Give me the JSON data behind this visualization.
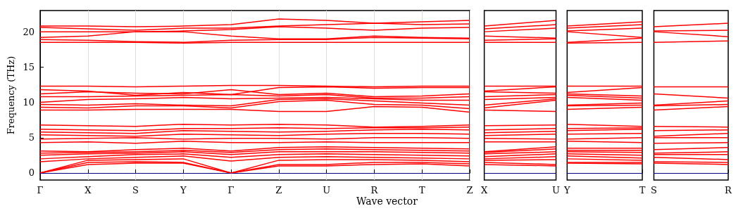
{
  "chart_data": [
    {
      "type": "line",
      "ylabel": "Frequency (THz)",
      "xlabel": "Wave vector",
      "categories": [
        "Γ",
        "X",
        "S",
        "Y",
        "Γ",
        "Z",
        "U",
        "R",
        "T",
        "Z"
      ],
      "ylim": [
        -1,
        23
      ],
      "yticks": [
        0,
        5,
        10,
        15,
        20
      ],
      "grid": "x",
      "marker": "none",
      "line_style": "solid",
      "ref_lines": [
        {
          "axis": "y",
          "value": 0,
          "color": "#0000ff",
          "line_style": "dotted"
        }
      ],
      "series": [
        {
          "color": "#ff0000",
          "values": [
            18.5,
            18.5,
            18.5,
            18.4,
            18.5,
            18.5,
            18.5,
            18.5,
            18.5,
            18.5
          ]
        },
        {
          "color": "#ff0000",
          "values": [
            18.9,
            18.8,
            18.6,
            18.5,
            18.8,
            18.9,
            18.9,
            19.2,
            19.1,
            19.0
          ]
        },
        {
          "color": "#ff0000",
          "values": [
            19.2,
            19.4,
            20.0,
            20.0,
            19.4,
            19.0,
            19.0,
            19.4,
            19.2,
            19.1
          ]
        },
        {
          "color": "#ff0000",
          "values": [
            20.0,
            20.0,
            20.0,
            20.1,
            20.3,
            20.7,
            20.5,
            20.2,
            20.5,
            20.6
          ]
        },
        {
          "color": "#ff0000",
          "values": [
            20.6,
            20.4,
            20.2,
            20.5,
            20.5,
            20.8,
            21.0,
            21.2,
            21.0,
            21.1
          ]
        },
        {
          "color": "#ff0000",
          "values": [
            20.8,
            20.8,
            20.7,
            20.8,
            21.0,
            21.8,
            21.6,
            21.2,
            21.4,
            21.6
          ]
        },
        {
          "color": "#ff0000",
          "values": [
            8.9,
            8.9,
            9.0,
            9.0,
            9.0,
            8.7,
            8.7,
            9.4,
            9.3,
            8.6
          ]
        },
        {
          "color": "#ff0000",
          "values": [
            9.3,
            9.2,
            9.5,
            9.5,
            9.2,
            10.1,
            10.3,
            9.7,
            9.6,
            9.1
          ]
        },
        {
          "color": "#ff0000",
          "values": [
            9.7,
            9.6,
            9.8,
            9.6,
            9.5,
            10.4,
            10.5,
            10.2,
            9.9,
            9.6
          ]
        },
        {
          "color": "#ff0000",
          "values": [
            10.0,
            10.4,
            10.5,
            10.7,
            10.5,
            10.6,
            10.7,
            10.5,
            10.3,
            10.3
          ]
        },
        {
          "color": "#ff0000",
          "values": [
            10.8,
            10.8,
            10.9,
            11.0,
            11.1,
            10.9,
            11.1,
            10.6,
            10.6,
            10.8
          ]
        },
        {
          "color": "#ff0000",
          "values": [
            11.2,
            11.5,
            11.3,
            11.2,
            11.8,
            11.1,
            11.3,
            10.8,
            10.9,
            11.2
          ]
        },
        {
          "color": "#ff0000",
          "values": [
            11.8,
            11.6,
            11.0,
            11.4,
            11.1,
            12.1,
            12.2,
            12.0,
            12.1,
            12.1
          ]
        },
        {
          "color": "#ff0000",
          "values": [
            12.3,
            12.3,
            12.2,
            12.3,
            12.4,
            12.4,
            12.3,
            12.2,
            12.3,
            12.3
          ]
        },
        {
          "color": "#ff0000",
          "values": [
            0,
            1.2,
            1.4,
            1.4,
            0,
            1.0,
            1.0,
            1.2,
            1.3,
            1.0
          ]
        },
        {
          "color": "#ff0000",
          "values": [
            0,
            1.5,
            1.6,
            1.5,
            0,
            1.2,
            1.2,
            1.5,
            1.5,
            1.3
          ]
        },
        {
          "color": "#ff0000",
          "values": [
            0,
            1.8,
            1.9,
            2.0,
            0,
            1.8,
            1.9,
            1.9,
            1.8,
            1.6
          ]
        },
        {
          "color": "#ff0000",
          "values": [
            1.6,
            2.0,
            2.2,
            2.4,
            1.7,
            2.2,
            2.3,
            2.2,
            2.1,
            2.0
          ]
        },
        {
          "color": "#ff0000",
          "values": [
            2.0,
            2.3,
            2.6,
            2.7,
            2.2,
            2.6,
            2.7,
            2.6,
            2.5,
            2.4
          ]
        },
        {
          "color": "#ff0000",
          "values": [
            2.5,
            2.7,
            2.8,
            3.0,
            2.6,
            3.0,
            3.0,
            3.0,
            2.9,
            2.8
          ]
        },
        {
          "color": "#ff0000",
          "values": [
            2.8,
            2.9,
            3.0,
            3.2,
            2.9,
            3.3,
            3.4,
            3.3,
            3.2,
            3.1
          ]
        },
        {
          "color": "#ff0000",
          "values": [
            3.1,
            3.0,
            3.3,
            3.5,
            3.1,
            3.6,
            3.7,
            3.6,
            3.5,
            3.4
          ]
        },
        {
          "color": "#ff0000",
          "values": [
            4.3,
            4.4,
            4.2,
            4.5,
            4.3,
            4.3,
            4.4,
            4.3,
            4.3,
            4.3
          ]
        },
        {
          "color": "#ff0000",
          "values": [
            4.8,
            4.9,
            5.0,
            4.8,
            4.9,
            4.9,
            4.8,
            5.0,
            5.0,
            4.9
          ]
        },
        {
          "color": "#ff0000",
          "values": [
            5.4,
            5.3,
            5.2,
            5.5,
            5.4,
            5.3,
            5.5,
            5.6,
            5.6,
            5.5
          ]
        },
        {
          "color": "#ff0000",
          "values": [
            5.8,
            5.7,
            5.6,
            6.0,
            5.9,
            5.8,
            5.9,
            6.1,
            6.2,
            6.1
          ]
        },
        {
          "color": "#ff0000",
          "values": [
            6.2,
            6.1,
            6.0,
            6.3,
            6.3,
            6.4,
            6.3,
            6.4,
            6.4,
            6.5
          ]
        },
        {
          "color": "#ff0000",
          "values": [
            6.8,
            6.7,
            6.6,
            6.9,
            6.8,
            6.9,
            6.8,
            6.5,
            6.6,
            6.8
          ]
        }
      ]
    },
    {
      "type": "line",
      "categories": [
        "X",
        "U"
      ],
      "ylim": [
        -1,
        23
      ],
      "yticks": [
        0,
        5,
        10,
        15,
        20
      ],
      "tick_labels": "x",
      "marker": "none",
      "line_style": "solid",
      "ref_lines": [
        {
          "axis": "y",
          "value": 0,
          "color": "#0000ff",
          "line_style": "dotted"
        }
      ],
      "series": [
        {
          "color": "#ff0000",
          "values": [
            18.5,
            18.5
          ]
        },
        {
          "color": "#ff0000",
          "values": [
            18.8,
            19.0
          ]
        },
        {
          "color": "#ff0000",
          "values": [
            19.4,
            19.1
          ]
        },
        {
          "color": "#ff0000",
          "values": [
            20.0,
            20.5
          ]
        },
        {
          "color": "#ff0000",
          "values": [
            20.4,
            21.0
          ]
        },
        {
          "color": "#ff0000",
          "values": [
            20.8,
            21.6
          ]
        },
        {
          "color": "#ff0000",
          "values": [
            8.9,
            8.7
          ]
        },
        {
          "color": "#ff0000",
          "values": [
            9.2,
            10.3
          ]
        },
        {
          "color": "#ff0000",
          "values": [
            9.6,
            10.5
          ]
        },
        {
          "color": "#ff0000",
          "values": [
            10.4,
            10.7
          ]
        },
        {
          "color": "#ff0000",
          "values": [
            10.8,
            11.1
          ]
        },
        {
          "color": "#ff0000",
          "values": [
            11.5,
            11.3
          ]
        },
        {
          "color": "#ff0000",
          "values": [
            11.6,
            12.2
          ]
        },
        {
          "color": "#ff0000",
          "values": [
            12.3,
            12.3
          ]
        },
        {
          "color": "#ff0000",
          "values": [
            1.2,
            1.0
          ]
        },
        {
          "color": "#ff0000",
          "values": [
            1.5,
            1.2
          ]
        },
        {
          "color": "#ff0000",
          "values": [
            1.8,
            1.9
          ]
        },
        {
          "color": "#ff0000",
          "values": [
            2.0,
            2.3
          ]
        },
        {
          "color": "#ff0000",
          "values": [
            2.3,
            2.7
          ]
        },
        {
          "color": "#ff0000",
          "values": [
            2.7,
            3.0
          ]
        },
        {
          "color": "#ff0000",
          "values": [
            2.9,
            3.4
          ]
        },
        {
          "color": "#ff0000",
          "values": [
            3.0,
            3.7
          ]
        },
        {
          "color": "#ff0000",
          "values": [
            4.4,
            4.4
          ]
        },
        {
          "color": "#ff0000",
          "values": [
            4.9,
            4.8
          ]
        },
        {
          "color": "#ff0000",
          "values": [
            5.3,
            5.5
          ]
        },
        {
          "color": "#ff0000",
          "values": [
            5.7,
            5.9
          ]
        },
        {
          "color": "#ff0000",
          "values": [
            6.1,
            6.3
          ]
        },
        {
          "color": "#ff0000",
          "values": [
            6.7,
            6.8
          ]
        }
      ]
    },
    {
      "type": "line",
      "categories": [
        "Y",
        "T"
      ],
      "ylim": [
        -1,
        23
      ],
      "yticks": [
        0,
        5,
        10,
        15,
        20
      ],
      "tick_labels": "x",
      "marker": "none",
      "line_style": "solid",
      "ref_lines": [
        {
          "axis": "y",
          "value": 0,
          "color": "#0000ff",
          "line_style": "dotted"
        }
      ],
      "series": [
        {
          "color": "#ff0000",
          "values": [
            18.4,
            18.5
          ]
        },
        {
          "color": "#ff0000",
          "values": [
            18.5,
            19.1
          ]
        },
        {
          "color": "#ff0000",
          "values": [
            20.0,
            19.2
          ]
        },
        {
          "color": "#ff0000",
          "values": [
            20.1,
            20.5
          ]
        },
        {
          "color": "#ff0000",
          "values": [
            20.5,
            21.0
          ]
        },
        {
          "color": "#ff0000",
          "values": [
            20.8,
            21.4
          ]
        },
        {
          "color": "#ff0000",
          "values": [
            9.0,
            9.3
          ]
        },
        {
          "color": "#ff0000",
          "values": [
            9.5,
            9.6
          ]
        },
        {
          "color": "#ff0000",
          "values": [
            9.6,
            9.9
          ]
        },
        {
          "color": "#ff0000",
          "values": [
            10.7,
            10.3
          ]
        },
        {
          "color": "#ff0000",
          "values": [
            11.0,
            10.6
          ]
        },
        {
          "color": "#ff0000",
          "values": [
            11.2,
            10.9
          ]
        },
        {
          "color": "#ff0000",
          "values": [
            11.4,
            12.1
          ]
        },
        {
          "color": "#ff0000",
          "values": [
            12.3,
            12.3
          ]
        },
        {
          "color": "#ff0000",
          "values": [
            1.4,
            1.3
          ]
        },
        {
          "color": "#ff0000",
          "values": [
            1.5,
            1.5
          ]
        },
        {
          "color": "#ff0000",
          "values": [
            2.0,
            1.8
          ]
        },
        {
          "color": "#ff0000",
          "values": [
            2.4,
            2.1
          ]
        },
        {
          "color": "#ff0000",
          "values": [
            2.7,
            2.5
          ]
        },
        {
          "color": "#ff0000",
          "values": [
            3.0,
            2.9
          ]
        },
        {
          "color": "#ff0000",
          "values": [
            3.2,
            3.2
          ]
        },
        {
          "color": "#ff0000",
          "values": [
            3.5,
            3.5
          ]
        },
        {
          "color": "#ff0000",
          "values": [
            4.5,
            4.3
          ]
        },
        {
          "color": "#ff0000",
          "values": [
            4.8,
            5.0
          ]
        },
        {
          "color": "#ff0000",
          "values": [
            5.5,
            5.6
          ]
        },
        {
          "color": "#ff0000",
          "values": [
            6.0,
            6.2
          ]
        },
        {
          "color": "#ff0000",
          "values": [
            6.3,
            6.4
          ]
        },
        {
          "color": "#ff0000",
          "values": [
            6.9,
            6.6
          ]
        }
      ]
    },
    {
      "type": "line",
      "categories": [
        "S",
        "R"
      ],
      "ylim": [
        -1,
        23
      ],
      "yticks": [
        0,
        5,
        10,
        15,
        20
      ],
      "tick_labels": "x",
      "marker": "none",
      "line_style": "solid",
      "ref_lines": [
        {
          "axis": "y",
          "value": 0,
          "color": "#0000ff",
          "line_style": "dotted"
        }
      ],
      "series": [
        {
          "color": "#ff0000",
          "values": [
            18.5,
            18.7
          ]
        },
        {
          "color": "#ff0000",
          "values": [
            20.0,
            19.3
          ]
        },
        {
          "color": "#ff0000",
          "values": [
            20.1,
            20.2
          ]
        },
        {
          "color": "#ff0000",
          "values": [
            20.7,
            21.2
          ]
        },
        {
          "color": "#ff0000",
          "values": [
            8.9,
            9.4
          ]
        },
        {
          "color": "#ff0000",
          "values": [
            9.5,
            9.7
          ]
        },
        {
          "color": "#ff0000",
          "values": [
            9.6,
            10.2
          ]
        },
        {
          "color": "#ff0000",
          "values": [
            11.2,
            10.6
          ]
        },
        {
          "color": "#ff0000",
          "values": [
            12.2,
            12.2
          ]
        },
        {
          "color": "#ff0000",
          "values": [
            1.4,
            1.2
          ]
        },
        {
          "color": "#ff0000",
          "values": [
            1.6,
            1.5
          ]
        },
        {
          "color": "#ff0000",
          "values": [
            2.2,
            1.9
          ]
        },
        {
          "color": "#ff0000",
          "values": [
            2.6,
            2.6
          ]
        },
        {
          "color": "#ff0000",
          "values": [
            2.8,
            3.0
          ]
        },
        {
          "color": "#ff0000",
          "values": [
            3.3,
            3.6
          ]
        },
        {
          "color": "#ff0000",
          "values": [
            4.2,
            4.3
          ]
        },
        {
          "color": "#ff0000",
          "values": [
            5.0,
            5.0
          ]
        },
        {
          "color": "#ff0000",
          "values": [
            5.2,
            5.6
          ]
        },
        {
          "color": "#ff0000",
          "values": [
            6.0,
            6.1
          ]
        },
        {
          "color": "#ff0000",
          "values": [
            6.6,
            6.5
          ]
        }
      ]
    }
  ]
}
